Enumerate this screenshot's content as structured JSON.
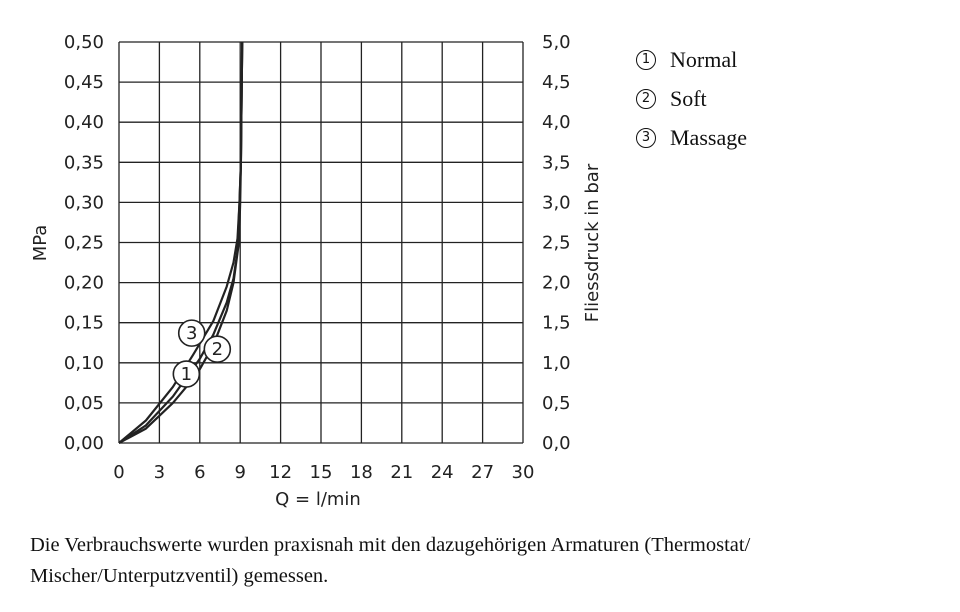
{
  "chart_data": {
    "type": "line",
    "xlabel": "Q = l/min",
    "ylabel_left": "MPa",
    "ylabel_right": "Fliessdruck in bar",
    "x_ticks": [
      "0",
      "3",
      "6",
      "9",
      "12",
      "15",
      "18",
      "21",
      "24",
      "27",
      "30"
    ],
    "y_ticks_left": [
      "0,00",
      "0,05",
      "0,10",
      "0,15",
      "0,20",
      "0,25",
      "0,30",
      "0,35",
      "0,40",
      "0,45",
      "0,50"
    ],
    "y_ticks_right": [
      "0,0",
      "0,5",
      "1,0",
      "1,5",
      "2,0",
      "2,5",
      "3,0",
      "3,5",
      "4,0",
      "4,5",
      "5,0"
    ],
    "xlim": [
      0,
      30
    ],
    "ylim": [
      0,
      0.5
    ],
    "grid": true,
    "series": [
      {
        "name": "Normal",
        "marker": "1",
        "x": [
          0,
          2,
          4,
          5,
          6,
          7,
          8,
          8.5,
          8.9,
          9.0,
          9.05,
          9.1,
          9.15
        ],
        "y": [
          0,
          0.018,
          0.05,
          0.07,
          0.092,
          0.122,
          0.165,
          0.2,
          0.25,
          0.3,
          0.35,
          0.42,
          0.5
        ]
      },
      {
        "name": "Soft",
        "marker": "2",
        "x": [
          0,
          2,
          4,
          6,
          7,
          8,
          8.5,
          8.8,
          8.95,
          9.05,
          9.1,
          9.15
        ],
        "y": [
          0,
          0.022,
          0.058,
          0.105,
          0.135,
          0.175,
          0.205,
          0.24,
          0.3,
          0.35,
          0.42,
          0.5
        ]
      },
      {
        "name": "Massage",
        "marker": "3",
        "x": [
          0,
          2,
          4,
          5.5,
          7,
          8,
          8.5,
          8.8,
          8.95,
          9.05,
          9.1,
          9.15
        ],
        "y": [
          0,
          0.028,
          0.07,
          0.11,
          0.152,
          0.195,
          0.225,
          0.255,
          0.3,
          0.35,
          0.42,
          0.5
        ]
      }
    ],
    "curve_labels": [
      {
        "text": "1",
        "x": 5.0,
        "y": 0.086
      },
      {
        "text": "2",
        "x": 7.3,
        "y": 0.117
      },
      {
        "text": "3",
        "x": 5.4,
        "y": 0.137
      }
    ]
  },
  "legend": [
    {
      "num": "1",
      "label": "Normal"
    },
    {
      "num": "2",
      "label": "Soft"
    },
    {
      "num": "3",
      "label": "Massage"
    }
  ],
  "caption": "Die Verbrauchswerte wurden praxisnah mit den dazugehörigen Armaturen (Thermostat/ Mischer/Unterputzventil) gemessen."
}
